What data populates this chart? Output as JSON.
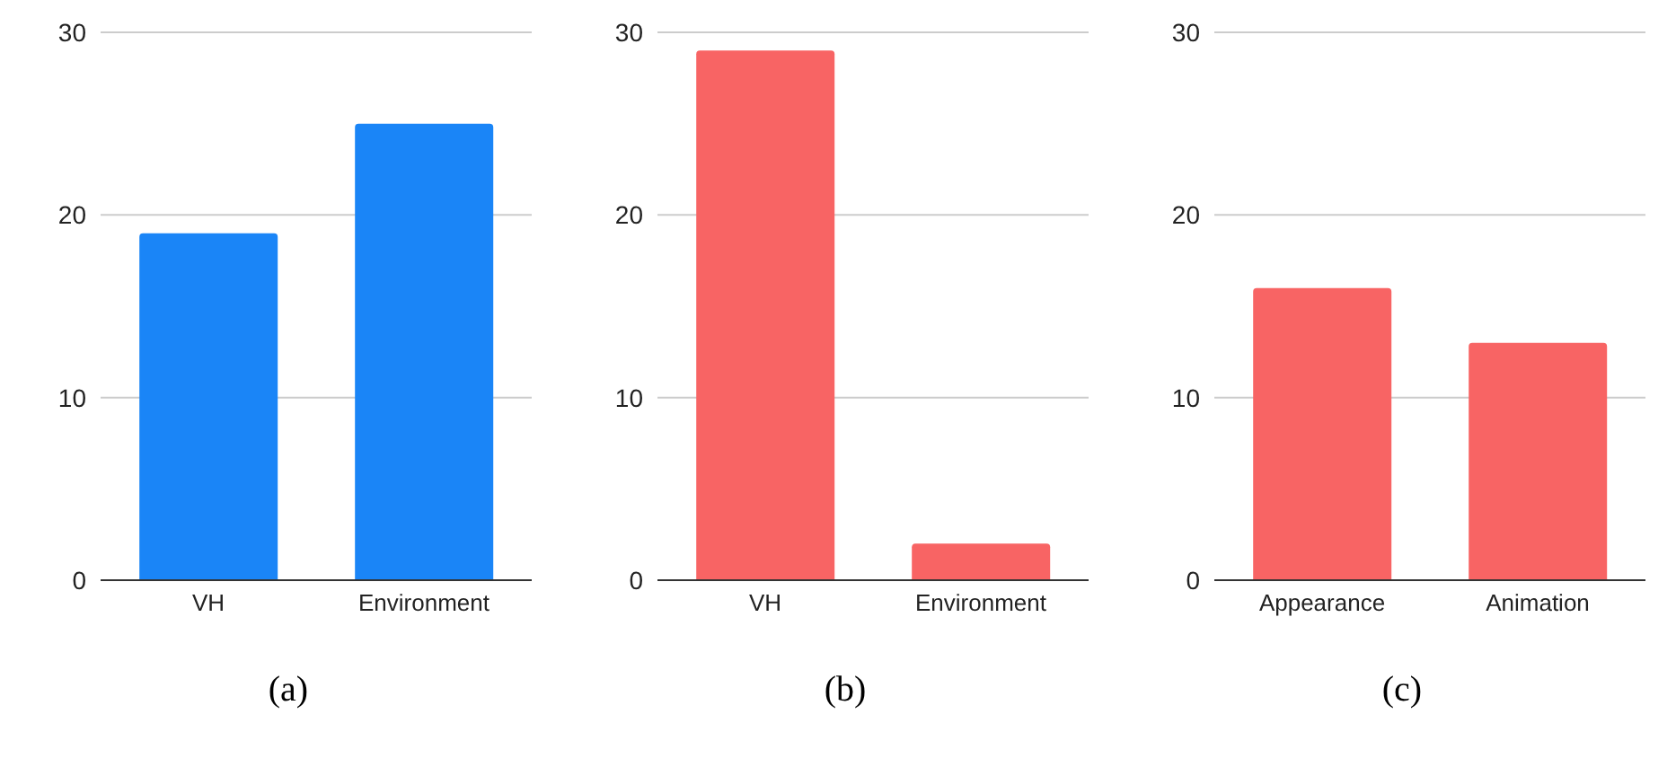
{
  "chart_data": [
    {
      "type": "bar",
      "title": "(a)",
      "categories": [
        "VH",
        "Environment"
      ],
      "values": [
        19,
        25
      ],
      "color": "#1a85f7",
      "ylim": [
        0,
        30
      ],
      "yticks": [
        0,
        10,
        20,
        30
      ],
      "grid": "y"
    },
    {
      "type": "bar",
      "title": "(b)",
      "categories": [
        "VH",
        "Environment"
      ],
      "values": [
        29,
        2
      ],
      "color": "#f86464",
      "ylim": [
        0,
        30
      ],
      "yticks": [
        0,
        10,
        20,
        30
      ],
      "grid": "y"
    },
    {
      "type": "bar",
      "title": "(c)",
      "categories": [
        "Appearance",
        "Animation"
      ],
      "values": [
        16,
        13
      ],
      "color": "#f86464",
      "ylim": [
        0,
        30
      ],
      "yticks": [
        0,
        10,
        20,
        30
      ],
      "grid": "y"
    }
  ]
}
